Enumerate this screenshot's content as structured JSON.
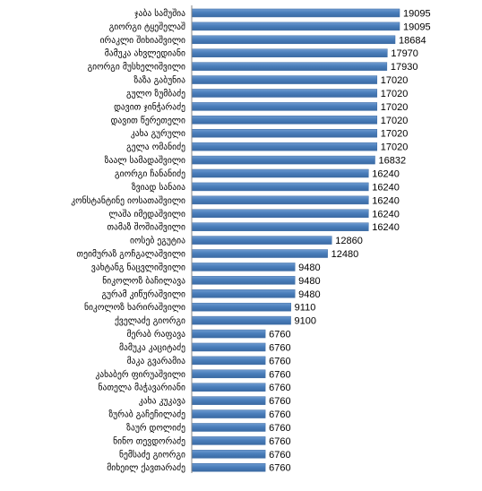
{
  "chart_data": {
    "type": "bar",
    "orientation": "horizontal",
    "title": "",
    "xlabel": "",
    "ylabel": "",
    "legend": "none",
    "grid": false,
    "bar_color": "#4a7ebb",
    "xlim": [
      0,
      24000
    ],
    "categories": [
      "ჯაბა სამუშია",
      "გიორგი ტყეშელაშ",
      "ირაკლი შიხიაშვილი",
      "მამუკა ახვლედიანი",
      "გიორგი მუსხელიშვილი",
      "ზაზა გაბუნია",
      "გულო ზუმბაძე",
      "დავით ჯინჭარაძე",
      "დავით წერეთელი",
      "კახა გურული",
      "გელა ომანიძე",
      "ზაალ სამადაშვილი",
      "გიორგი ჩანანიძე",
      "ზვიად სანაია",
      "კონსტანტინე იოსათაშვილი",
      "ლაშა იმედაშვილი",
      "თამაზ შოშიაშვილი",
      "იოსებ ეგუტია",
      "თეიმურაზ გოჩგალაშვილი",
      "ვახტანგ ნაცვლიშვილი",
      "ნიკოლოზ ბაჩილავა",
      "გურამ კიწურაშვილი",
      "ნიკოლოზ ხარირაშვილი",
      "ქველაძე გიორგი",
      "მერაბ რაფავა",
      "მამუკა კაციტაძე",
      "მაკა გვარამია",
      "კახაბერ ფირუაშვილი",
      "ნათელა მაჭავარიანი",
      "კახა კუკავა",
      "ზურაბ გაჩეჩილაძე",
      "ზაურ დოლიძე",
      "ნინო თევდორაძე",
      "ნემსაძე გიორგი",
      "მიხეილ ქავთარაძე"
    ],
    "values": [
      19095,
      19095,
      18684,
      17970,
      17930,
      17020,
      17020,
      17020,
      17020,
      17020,
      17020,
      16832,
      16240,
      16240,
      16240,
      16240,
      16240,
      12860,
      12480,
      9480,
      9480,
      9480,
      9110,
      9100,
      6760,
      6760,
      6760,
      6760,
      6760,
      6760,
      6760,
      6760,
      6760,
      6760,
      6760
    ]
  }
}
